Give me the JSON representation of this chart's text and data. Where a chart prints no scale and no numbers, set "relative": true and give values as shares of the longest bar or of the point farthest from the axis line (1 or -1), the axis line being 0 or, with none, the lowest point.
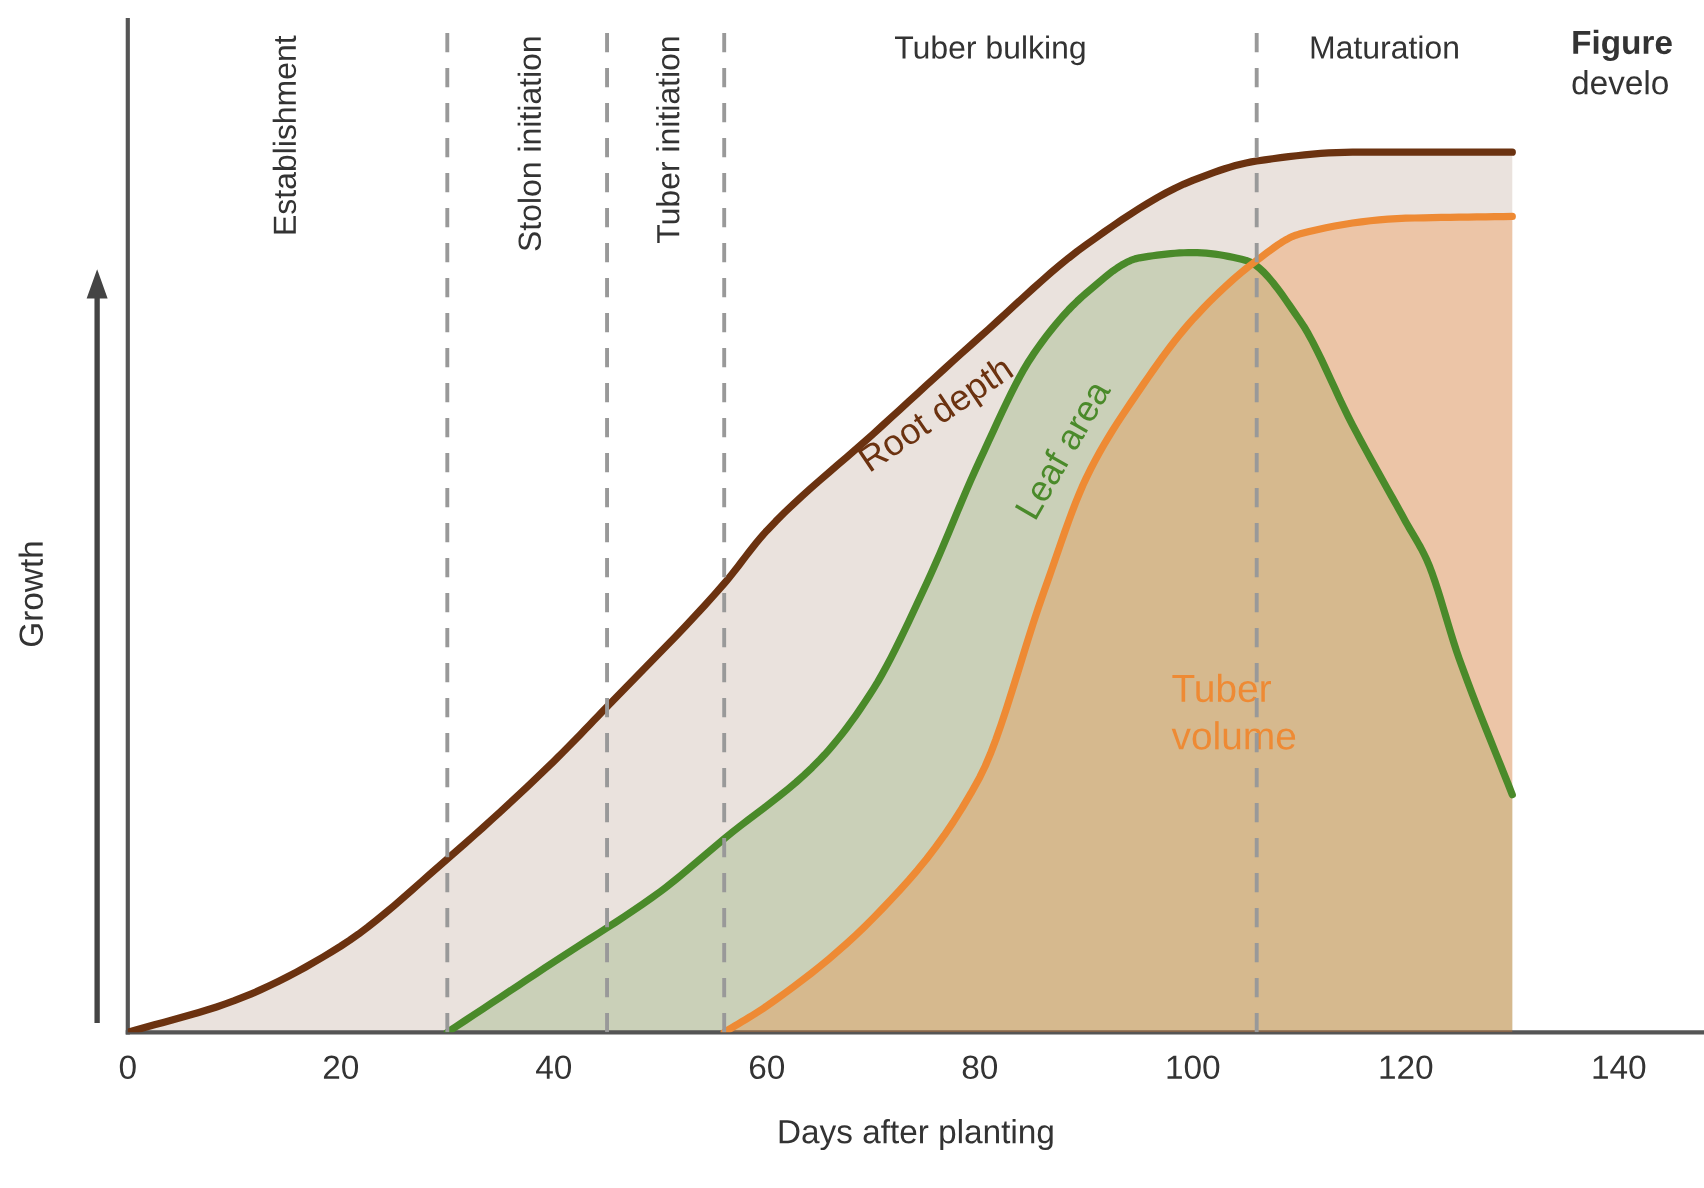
{
  "chart_data": {
    "type": "area",
    "relative": true,
    "xlabel": "Days after planting",
    "ylabel": "Growth",
    "xlim": [
      0,
      148
    ],
    "xticks": [
      0,
      20,
      40,
      60,
      80,
      100,
      120,
      140
    ],
    "series": [
      {
        "name": "Root depth",
        "color": "#6b3210",
        "x": [
          0,
          10,
          20,
          30,
          40,
          45,
          56,
          60,
          70,
          80,
          90,
          100,
          106,
          115,
          130
        ],
        "values": [
          0,
          0.036,
          0.098,
          0.197,
          0.308,
          0.37,
          0.51,
          0.57,
          0.68,
          0.79,
          0.895,
          0.968,
          0.99,
          1.0,
          1.0
        ]
      },
      {
        "name": "Leaf area",
        "color": "#4a8a2a",
        "x": [
          30,
          40,
          50,
          56,
          65,
          70,
          75,
          80,
          85,
          90,
          95,
          100,
          105,
          110,
          115,
          120,
          122,
          125,
          130
        ],
        "values": [
          0,
          0.08,
          0.16,
          0.22,
          0.31,
          0.39,
          0.51,
          0.65,
          0.77,
          0.84,
          0.88,
          0.886,
          0.877,
          0.81,
          0.69,
          0.58,
          0.536,
          0.425,
          0.27
        ]
      },
      {
        "name": "Tuber volume",
        "color": "#ee8a34",
        "x": [
          56,
          60,
          70,
          80,
          86,
          90,
          95,
          100,
          106,
          110,
          120,
          130
        ],
        "values": [
          0,
          0.03,
          0.13,
          0.29,
          0.5,
          0.63,
          0.73,
          0.81,
          0.877,
          0.907,
          0.925,
          0.927
        ]
      }
    ],
    "ref_lines": [
      {
        "axis": "x",
        "value": 30,
        "color": "#999999",
        "line_style": "dashed"
      },
      {
        "axis": "x",
        "value": 45,
        "color": "#999999",
        "line_style": "dashed"
      },
      {
        "axis": "x",
        "value": 56,
        "color": "#999999",
        "line_style": "dashed"
      },
      {
        "axis": "x",
        "value": 106,
        "color": "#999999",
        "line_style": "dashed"
      }
    ],
    "annotations": [
      "Establishment",
      "Stolon initiation",
      "Tuber initiation",
      "Tuber bulking",
      "Maturation",
      "Figure",
      "develo"
    ],
    "grid": false,
    "marker": "none",
    "line_style": "solid"
  }
}
